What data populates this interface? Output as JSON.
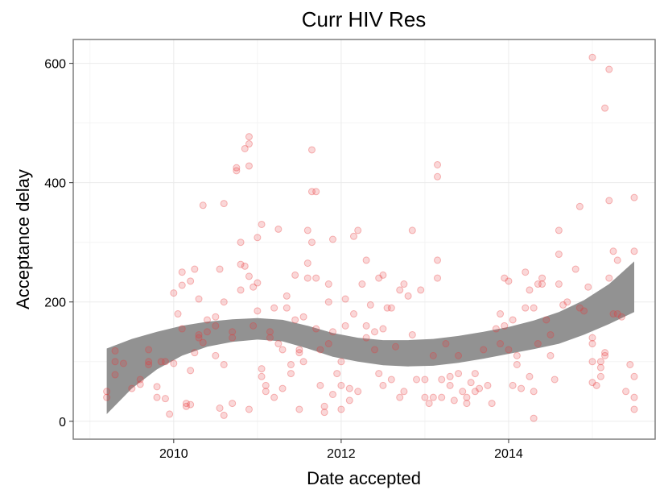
{
  "chart_data": {
    "type": "scatter",
    "title": "Curr HIV Res",
    "xlabel": "Date accepted",
    "ylabel": "Acceptance delay",
    "xlim": [
      2008.8,
      2015.75
    ],
    "ylim": [
      -30,
      640
    ],
    "x_ticks": [
      2010,
      2012,
      2014
    ],
    "y_ticks": [
      0,
      200,
      400,
      600
    ],
    "x_tick_labels": [
      "2010",
      "2012",
      "2014"
    ],
    "y_tick_labels": [
      "0",
      "200",
      "400",
      "600"
    ],
    "grid": true,
    "colors": {
      "points": "#e8393a",
      "band": "#8c8c8c",
      "frame": "#7f7f7f",
      "grid": "#ebebeb"
    },
    "smooth_band": {
      "x": [
        2009.2,
        2009.5,
        2009.8,
        2010.1,
        2010.4,
        2010.7,
        2011.0,
        2011.3,
        2011.6,
        2011.9,
        2012.2,
        2012.5,
        2012.8,
        2013.1,
        2013.4,
        2013.7,
        2014.0,
        2014.3,
        2014.6,
        2014.9,
        2015.2,
        2015.5
      ],
      "lower": [
        12,
        55,
        87,
        110,
        125,
        133,
        137,
        134,
        122,
        108,
        100,
        94,
        92,
        93,
        98,
        105,
        113,
        121,
        130,
        145,
        163,
        183
      ],
      "upper": [
        122,
        138,
        150,
        160,
        167,
        171,
        173,
        170,
        160,
        148,
        140,
        136,
        136,
        138,
        143,
        150,
        158,
        169,
        183,
        203,
        230,
        268
      ]
    },
    "points": [
      [
        2009.2,
        40
      ],
      [
        2009.2,
        50
      ],
      [
        2009.3,
        118
      ],
      [
        2009.3,
        100
      ],
      [
        2009.3,
        78
      ],
      [
        2009.4,
        97
      ],
      [
        2009.5,
        55
      ],
      [
        2009.6,
        70
      ],
      [
        2009.6,
        62
      ],
      [
        2009.7,
        95
      ],
      [
        2009.7,
        100
      ],
      [
        2009.7,
        120
      ],
      [
        2009.8,
        58
      ],
      [
        2009.8,
        40
      ],
      [
        2009.85,
        100
      ],
      [
        2009.9,
        38
      ],
      [
        2009.9,
        100
      ],
      [
        2009.95,
        12
      ],
      [
        2010.0,
        97
      ],
      [
        2010.0,
        215
      ],
      [
        2010.05,
        180
      ],
      [
        2010.1,
        155
      ],
      [
        2010.1,
        250
      ],
      [
        2010.1,
        228
      ],
      [
        2010.15,
        30
      ],
      [
        2010.15,
        25
      ],
      [
        2010.2,
        235
      ],
      [
        2010.2,
        85
      ],
      [
        2010.2,
        28
      ],
      [
        2010.25,
        255
      ],
      [
        2010.25,
        115
      ],
      [
        2010.3,
        205
      ],
      [
        2010.3,
        145
      ],
      [
        2010.3,
        140
      ],
      [
        2010.35,
        362
      ],
      [
        2010.35,
        132
      ],
      [
        2010.4,
        170
      ],
      [
        2010.4,
        150
      ],
      [
        2010.5,
        110
      ],
      [
        2010.5,
        160
      ],
      [
        2010.5,
        175
      ],
      [
        2010.55,
        255
      ],
      [
        2010.55,
        22
      ],
      [
        2010.6,
        365
      ],
      [
        2010.6,
        200
      ],
      [
        2010.6,
        95
      ],
      [
        2010.6,
        10
      ],
      [
        2010.7,
        30
      ],
      [
        2010.7,
        150
      ],
      [
        2010.7,
        140
      ],
      [
        2010.75,
        425
      ],
      [
        2010.75,
        420
      ],
      [
        2010.8,
        263
      ],
      [
        2010.8,
        220
      ],
      [
        2010.8,
        300
      ],
      [
        2010.85,
        260
      ],
      [
        2010.85,
        457
      ],
      [
        2010.9,
        477
      ],
      [
        2010.9,
        465
      ],
      [
        2010.9,
        428
      ],
      [
        2010.9,
        243
      ],
      [
        2010.9,
        20
      ],
      [
        2010.95,
        225
      ],
      [
        2010.95,
        160
      ],
      [
        2011.0,
        232
      ],
      [
        2011.0,
        308
      ],
      [
        2011.0,
        185
      ],
      [
        2011.05,
        330
      ],
      [
        2011.05,
        88
      ],
      [
        2011.05,
        75
      ],
      [
        2011.1,
        50
      ],
      [
        2011.1,
        60
      ],
      [
        2011.15,
        150
      ],
      [
        2011.15,
        140
      ],
      [
        2011.2,
        190
      ],
      [
        2011.2,
        40
      ],
      [
        2011.25,
        322
      ],
      [
        2011.25,
        130
      ],
      [
        2011.3,
        120
      ],
      [
        2011.3,
        55
      ],
      [
        2011.35,
        210
      ],
      [
        2011.35,
        190
      ],
      [
        2011.4,
        95
      ],
      [
        2011.4,
        80
      ],
      [
        2011.45,
        245
      ],
      [
        2011.45,
        170
      ],
      [
        2011.5,
        120
      ],
      [
        2011.5,
        115
      ],
      [
        2011.5,
        20
      ],
      [
        2011.55,
        175
      ],
      [
        2011.55,
        100
      ],
      [
        2011.6,
        320
      ],
      [
        2011.6,
        265
      ],
      [
        2011.6,
        240
      ],
      [
        2011.65,
        455
      ],
      [
        2011.65,
        385
      ],
      [
        2011.65,
        300
      ],
      [
        2011.7,
        385
      ],
      [
        2011.7,
        240
      ],
      [
        2011.7,
        155
      ],
      [
        2011.75,
        120
      ],
      [
        2011.75,
        60
      ],
      [
        2011.8,
        15
      ],
      [
        2011.8,
        25
      ],
      [
        2011.85,
        230
      ],
      [
        2011.85,
        200
      ],
      [
        2011.85,
        130
      ],
      [
        2011.9,
        305
      ],
      [
        2011.9,
        150
      ],
      [
        2011.9,
        45
      ],
      [
        2011.95,
        80
      ],
      [
        2012.0,
        100
      ],
      [
        2012.0,
        60
      ],
      [
        2012.0,
        20
      ],
      [
        2012.05,
        205
      ],
      [
        2012.05,
        160
      ],
      [
        2012.1,
        55
      ],
      [
        2012.1,
        35
      ],
      [
        2012.15,
        310
      ],
      [
        2012.15,
        180
      ],
      [
        2012.2,
        320
      ],
      [
        2012.2,
        50
      ],
      [
        2012.25,
        230
      ],
      [
        2012.3,
        270
      ],
      [
        2012.3,
        160
      ],
      [
        2012.3,
        140
      ],
      [
        2012.35,
        195
      ],
      [
        2012.4,
        150
      ],
      [
        2012.4,
        120
      ],
      [
        2012.45,
        240
      ],
      [
        2012.45,
        80
      ],
      [
        2012.5,
        245
      ],
      [
        2012.5,
        155
      ],
      [
        2012.5,
        60
      ],
      [
        2012.55,
        190
      ],
      [
        2012.6,
        190
      ],
      [
        2012.6,
        70
      ],
      [
        2012.65,
        125
      ],
      [
        2012.7,
        220
      ],
      [
        2012.7,
        40
      ],
      [
        2012.75,
        230
      ],
      [
        2012.75,
        50
      ],
      [
        2012.8,
        210
      ],
      [
        2012.85,
        320
      ],
      [
        2012.85,
        145
      ],
      [
        2012.9,
        70
      ],
      [
        2012.95,
        220
      ],
      [
        2013.0,
        40
      ],
      [
        2013.0,
        70
      ],
      [
        2013.05,
        30
      ],
      [
        2013.1,
        40
      ],
      [
        2013.1,
        110
      ],
      [
        2013.15,
        430
      ],
      [
        2013.15,
        410
      ],
      [
        2013.15,
        270
      ],
      [
        2013.15,
        240
      ],
      [
        2013.2,
        70
      ],
      [
        2013.2,
        40
      ],
      [
        2013.25,
        130
      ],
      [
        2013.3,
        75
      ],
      [
        2013.3,
        60
      ],
      [
        2013.35,
        35
      ],
      [
        2013.4,
        110
      ],
      [
        2013.4,
        80
      ],
      [
        2013.45,
        50
      ],
      [
        2013.5,
        40
      ],
      [
        2013.5,
        30
      ],
      [
        2013.55,
        65
      ],
      [
        2013.6,
        80
      ],
      [
        2013.6,
        50
      ],
      [
        2013.65,
        55
      ],
      [
        2013.7,
        120
      ],
      [
        2013.75,
        60
      ],
      [
        2013.8,
        30
      ],
      [
        2013.85,
        155
      ],
      [
        2013.9,
        180
      ],
      [
        2013.9,
        130
      ],
      [
        2013.95,
        160
      ],
      [
        2013.95,
        240
      ],
      [
        2014.0,
        235
      ],
      [
        2014.0,
        120
      ],
      [
        2014.05,
        60
      ],
      [
        2014.05,
        170
      ],
      [
        2014.1,
        110
      ],
      [
        2014.1,
        95
      ],
      [
        2014.15,
        55
      ],
      [
        2014.2,
        250
      ],
      [
        2014.2,
        190
      ],
      [
        2014.25,
        220
      ],
      [
        2014.25,
        75
      ],
      [
        2014.3,
        190
      ],
      [
        2014.3,
        50
      ],
      [
        2014.3,
        5
      ],
      [
        2014.35,
        230
      ],
      [
        2014.35,
        130
      ],
      [
        2014.4,
        240
      ],
      [
        2014.4,
        230
      ],
      [
        2014.45,
        170
      ],
      [
        2014.5,
        145
      ],
      [
        2014.5,
        110
      ],
      [
        2014.55,
        70
      ],
      [
        2014.6,
        230
      ],
      [
        2014.6,
        280
      ],
      [
        2014.6,
        320
      ],
      [
        2014.65,
        195
      ],
      [
        2014.7,
        200
      ],
      [
        2014.8,
        255
      ],
      [
        2014.85,
        360
      ],
      [
        2014.85,
        190
      ],
      [
        2014.9,
        185
      ],
      [
        2014.95,
        225
      ],
      [
        2015.0,
        610
      ],
      [
        2015.0,
        140
      ],
      [
        2015.0,
        130
      ],
      [
        2015.0,
        100
      ],
      [
        2015.0,
        65
      ],
      [
        2015.05,
        60
      ],
      [
        2015.1,
        100
      ],
      [
        2015.1,
        90
      ],
      [
        2015.1,
        75
      ],
      [
        2015.15,
        525
      ],
      [
        2015.15,
        115
      ],
      [
        2015.15,
        110
      ],
      [
        2015.2,
        590
      ],
      [
        2015.2,
        370
      ],
      [
        2015.2,
        240
      ],
      [
        2015.25,
        285
      ],
      [
        2015.25,
        180
      ],
      [
        2015.3,
        270
      ],
      [
        2015.3,
        180
      ],
      [
        2015.35,
        175
      ],
      [
        2015.4,
        50
      ],
      [
        2015.45,
        95
      ],
      [
        2015.5,
        375
      ],
      [
        2015.5,
        285
      ],
      [
        2015.5,
        75
      ],
      [
        2015.5,
        40
      ],
      [
        2015.5,
        20
      ]
    ]
  }
}
